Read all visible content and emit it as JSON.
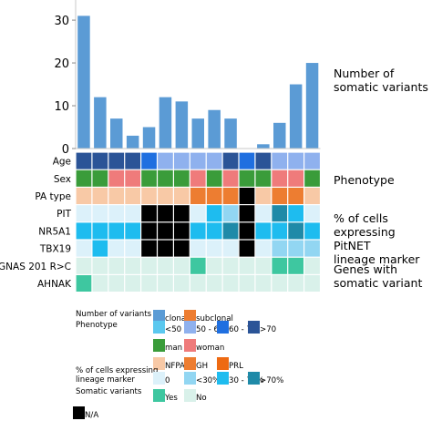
{
  "chart_data": {
    "type": "bar",
    "yaxis": {
      "ylim": [
        0,
        33
      ],
      "ticks": [
        0,
        10,
        20,
        30
      ]
    },
    "bar_color": "#5b9bd5",
    "somatic_variants": [
      31,
      12,
      7,
      3,
      5,
      12,
      11,
      7,
      9,
      7,
      0,
      1,
      6,
      15,
      20
    ],
    "panel_labels": {
      "variants": "Number of\nsomatic variants",
      "phenotype": "Phenotype",
      "lineage": "% of cells\nexpressing PitNET\nlineage marker",
      "genes": "Genes with\nsomatic variant"
    },
    "rows": [
      {
        "label": "Age",
        "values": [
          "gt70",
          "gt70",
          "gt70",
          "gt70",
          "a60_70",
          "a50_60",
          "a50_60",
          "a50_60",
          "a50_60",
          "gt70",
          "a60_70",
          "gt70",
          "a50_60",
          "a50_60",
          "a50_60"
        ]
      },
      {
        "label": "Sex",
        "values": [
          "man",
          "man",
          "woman",
          "woman",
          "man",
          "man",
          "man",
          "woman",
          "man",
          "woman",
          "man",
          "man",
          "woman",
          "woman",
          "man"
        ]
      },
      {
        "label": "PA type",
        "values": [
          "nfpa",
          "nfpa",
          "nfpa",
          "nfpa",
          "nfpa",
          "nfpa",
          "nfpa",
          "gh",
          "gh",
          "gh",
          "na",
          "nfpa",
          "gh",
          "gh",
          "nfpa"
        ]
      },
      {
        "label": "PIT",
        "values": [
          "p0",
          "p0",
          "p0",
          "p0",
          "na",
          "na",
          "na",
          "p0",
          "p30_70",
          "plt30",
          "na",
          "p0",
          "pgt70",
          "p30_70",
          "p0"
        ]
      },
      {
        "label": "NR5A1",
        "values": [
          "p30_70",
          "p30_70",
          "p30_70",
          "p30_70",
          "na",
          "na",
          "na",
          "p30_70",
          "p30_70",
          "pgt70",
          "na",
          "p30_70",
          "p30_70",
          "pgt70",
          "p30_70"
        ]
      },
      {
        "label": "TBX19",
        "values": [
          "p0",
          "p30_70",
          "p0",
          "p0",
          "na",
          "na",
          "na",
          "p0",
          "p0",
          "p0",
          "na",
          "p0",
          "plt30",
          "plt30",
          "plt30"
        ]
      },
      {
        "label": "GNAS 201 R>C",
        "values": [
          "no",
          "no",
          "no",
          "no",
          "no",
          "no",
          "no",
          "yes",
          "no",
          "no",
          "no",
          "no",
          "yes",
          "yes",
          "no"
        ]
      },
      {
        "label": "AHNAK",
        "values": [
          "yes",
          "no",
          "no",
          "no",
          "no",
          "no",
          "no",
          "no",
          "no",
          "no",
          "no",
          "no",
          "no",
          "no",
          "no"
        ]
      }
    ],
    "legend": {
      "groups": [
        {
          "title": "Number of variants",
          "items": [
            {
              "key": "clonal",
              "label": "clonal"
            },
            {
              "key": "subclonal",
              "label": "subclonal"
            }
          ]
        },
        {
          "title": "Phenotype",
          "items": [
            {
              "key": "lt50",
              "label": "<50"
            },
            {
              "key": "a50_60",
              "label": "50 - 60"
            },
            {
              "key": "a60_70",
              "label": "60 - 70"
            },
            {
              "key": "gt70",
              "label": ">70"
            }
          ]
        },
        {
          "title": "",
          "items": [
            {
              "key": "man",
              "label": "man"
            },
            {
              "key": "woman",
              "label": "woman"
            }
          ]
        },
        {
          "title": "",
          "items": [
            {
              "key": "nfpa",
              "label": "NFPA"
            },
            {
              "key": "gh",
              "label": "GH"
            },
            {
              "key": "prl",
              "label": "PRL"
            }
          ]
        },
        {
          "title": "% of cells expressing\nlineage marker",
          "items": [
            {
              "key": "p0",
              "label": "0"
            },
            {
              "key": "plt30",
              "label": "<30%"
            },
            {
              "key": "p30_70",
              "label": "30 - 70%"
            },
            {
              "key": "pgt70",
              "label": ">70%"
            }
          ]
        },
        {
          "title": "Somatic variants",
          "items": [
            {
              "key": "yes",
              "label": "Yes"
            },
            {
              "key": "no",
              "label": "No"
            }
          ]
        },
        {
          "title": "",
          "items": [
            {
              "key": "na",
              "label": "N/A"
            }
          ]
        }
      ]
    },
    "colors": {
      "clonal": "#5b9bd5",
      "subclonal": "#ed7d31",
      "lt50": "#5bc8ef",
      "a50_60": "#8fb1ee",
      "a60_70": "#1f6fe0",
      "gt70": "#2b5497",
      "man": "#3a9c3a",
      "woman": "#ef7b7b",
      "nfpa": "#f8c9a6",
      "gh": "#ed7d31",
      "prl": "#ee6a12",
      "p0": "#dcf1fa",
      "plt30": "#92d6f2",
      "p30_70": "#1ebcef",
      "pgt70": "#1f8aa8",
      "yes": "#3ec7a0",
      "no": "#d9f1ea",
      "na": "#000000"
    }
  }
}
